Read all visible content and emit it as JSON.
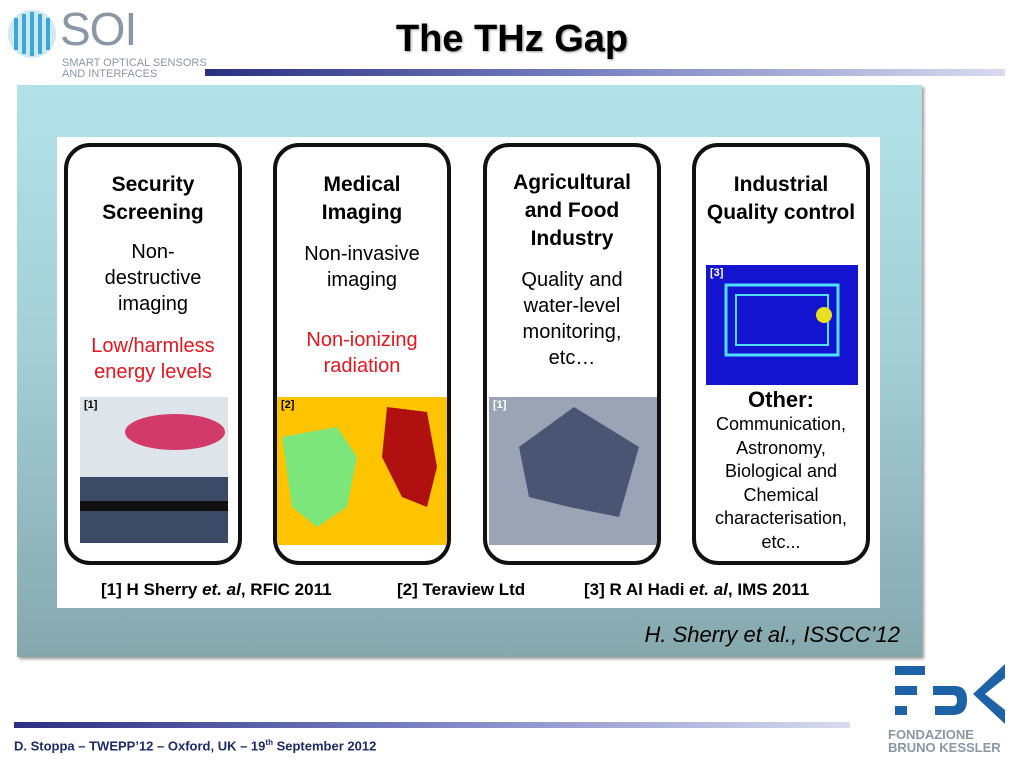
{
  "header": {
    "logo": "SOI",
    "logo_subtitle": "SMART OPTICAL SENSORS AND INTERFACES",
    "title": "The THz Gap"
  },
  "cards": [
    {
      "title": "Security Screening",
      "description": "Non-destructive imaging",
      "highlight": "Low/harmless energy levels",
      "image_label": "[1]"
    },
    {
      "title": "Medical Imaging",
      "description": "Non-invasive imaging",
      "highlight": "Non-ionizing radiation",
      "image_label": "[2]"
    },
    {
      "title": "Agricultural and Food Industry",
      "description": "Quality and water-level monitoring, etc…",
      "image_label": "[1]"
    },
    {
      "title": "Industrial Quality control",
      "image_label": "[3]",
      "other_heading": "Other:",
      "description": "Communication, Astronomy, Biological and Chemical characterisation, etc..."
    }
  ],
  "references": [
    {
      "prefix": "[1] H Sherry ",
      "italic": "et. al",
      "suffix": ", RFIC 2011"
    },
    {
      "text": "[2] Teraview Ltd"
    },
    {
      "prefix": "[3] R Al Hadi ",
      "italic": "et. al",
      "suffix": ", IMS 2011"
    }
  ],
  "citation": "H. Sherry et al., ISSCC’12",
  "footer": {
    "before": "D. Stoppa – TWEPP’12 – Oxford, UK –  19",
    "superscript": "th",
    "after": " September 2012",
    "logo_text": "FONDAZIONE BRUNO KESSLER"
  }
}
